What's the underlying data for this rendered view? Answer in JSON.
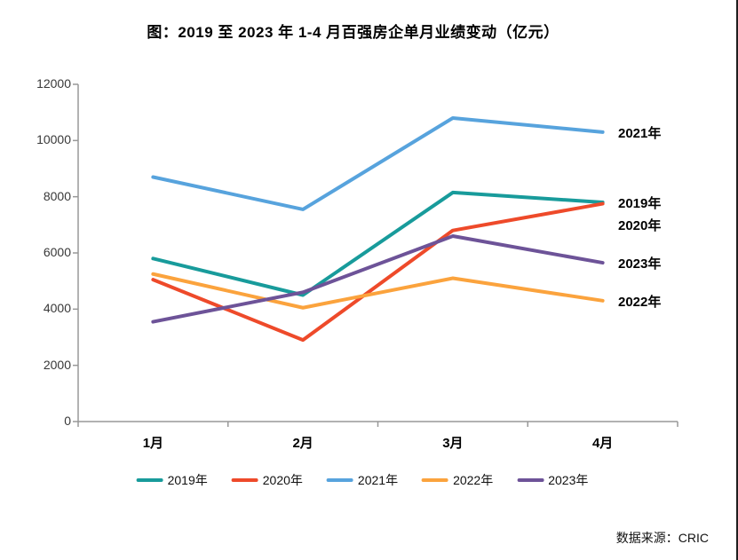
{
  "title": "图：2019 至 2023 年 1-4 月百强房企单月业绩变动（亿元）",
  "source_note": "数据来源：CRIC",
  "chart_data": {
    "type": "line",
    "title": "图：2019 至 2023 年 1-4 月百强房企单月业绩变动（亿元）",
    "categories": [
      "1月",
      "2月",
      "3月",
      "4月"
    ],
    "series": [
      {
        "name": "2019年",
        "color": "#189b9b",
        "values": [
          5800,
          4500,
          8150,
          7800
        ]
      },
      {
        "name": "2020年",
        "color": "#ee4a2a",
        "values": [
          5050,
          2900,
          6800,
          7750
        ]
      },
      {
        "name": "2021年",
        "color": "#57a3dd",
        "values": [
          8700,
          7550,
          10800,
          10300
        ]
      },
      {
        "name": "2022年",
        "color": "#fba33d",
        "values": [
          5250,
          4050,
          5100,
          4300
        ]
      },
      {
        "name": "2023年",
        "color": "#6d5398",
        "values": [
          3550,
          4600,
          6600,
          5650
        ]
      }
    ],
    "xlabel": "",
    "ylabel": "",
    "ylim": [
      0,
      12000
    ],
    "yticks": [
      0,
      2000,
      4000,
      6000,
      8000,
      10000,
      12000
    ],
    "grid": false,
    "legend_position": "bottom",
    "end_labels": [
      "2021年",
      "2019年",
      "2020年",
      "2023年",
      "2022年"
    ]
  }
}
